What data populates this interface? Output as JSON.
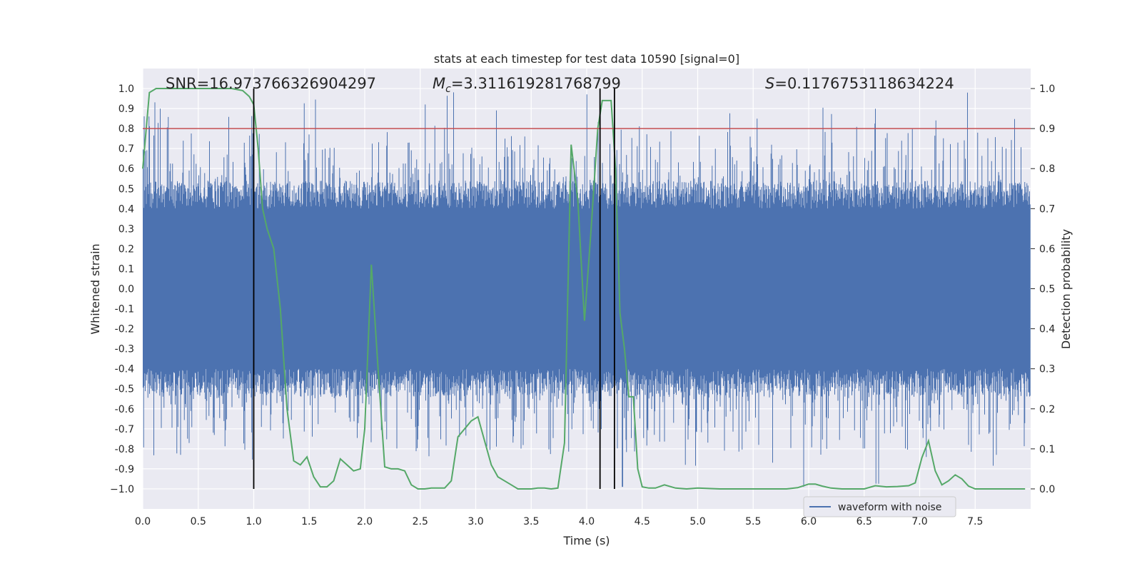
{
  "chart_data": {
    "type": "line",
    "title": "stats at each timestep for test data 10590 [signal=0]",
    "xlabel": "Time (s)",
    "ylabel_left": "Whitened strain",
    "ylabel_right": "Detection probability",
    "xlim": [
      0.0,
      8.0
    ],
    "ylim_left": [
      -1.1,
      1.1
    ],
    "ylim_right": [
      -0.05,
      1.05
    ],
    "x_ticks": [
      "0.0",
      "0.5",
      "1.0",
      "1.5",
      "2.0",
      "2.5",
      "3.0",
      "3.5",
      "4.0",
      "4.5",
      "5.0",
      "5.5",
      "6.0",
      "6.5",
      "7.0",
      "7.5"
    ],
    "y_ticks_left": [
      "1.0",
      "0.9",
      "0.8",
      "0.7",
      "0.6",
      "0.5",
      "0.4",
      "0.3",
      "0.2",
      "0.1",
      "0.0",
      "-0.1",
      "-0.2",
      "-0.3",
      "-0.4",
      "-0.5",
      "-0.6",
      "-0.7",
      "-0.8",
      "-0.9",
      "−1.0"
    ],
    "y_ticks_right": [
      "1.0",
      "0.9",
      "0.8",
      "0.7",
      "0.6",
      "0.5",
      "0.4",
      "0.3",
      "0.2",
      "0.1",
      "0.0"
    ],
    "annotations": {
      "snr": "SNR=16.973766326904297",
      "mc_symbol": "M",
      "mc_sub": "c",
      "mc_value": "=3.311619281768799",
      "s_symbol": "S",
      "s_value": "=0.1176753118634224"
    },
    "threshold": {
      "name": "detection threshold",
      "value_right": 0.9,
      "color": "#c44e52"
    },
    "vertical_markers": [
      {
        "x": 1.0,
        "color": "#000000"
      },
      {
        "x": 4.12,
        "color": "#000000"
      },
      {
        "x": 4.25,
        "color": "#000000"
      }
    ],
    "series": [
      {
        "name": "waveform with noise",
        "axis": "left",
        "color": "#4c72b0",
        "style": "dense noise band",
        "envelope_typical": [
          -0.4,
          0.4
        ],
        "peak_extent": [
          -0.99,
          1.0
        ]
      },
      {
        "name": "detection probability",
        "axis": "right",
        "color": "#55a868",
        "x": [
          0.0,
          0.06,
          0.12,
          0.2,
          0.3,
          0.4,
          0.5,
          0.6,
          0.7,
          0.8,
          0.9,
          0.96,
          1.0,
          1.04,
          1.08,
          1.12,
          1.18,
          1.24,
          1.3,
          1.36,
          1.42,
          1.48,
          1.54,
          1.6,
          1.66,
          1.72,
          1.78,
          1.84,
          1.9,
          1.96,
          2.0,
          2.06,
          2.12,
          2.18,
          2.24,
          2.3,
          2.36,
          2.42,
          2.48,
          2.54,
          2.6,
          2.66,
          2.72,
          2.78,
          2.84,
          2.9,
          2.96,
          3.02,
          3.08,
          3.14,
          3.2,
          3.26,
          3.32,
          3.38,
          3.44,
          3.5,
          3.56,
          3.62,
          3.68,
          3.74,
          3.8,
          3.86,
          3.92,
          3.98,
          4.04,
          4.1,
          4.14,
          4.18,
          4.22,
          4.26,
          4.3,
          4.34,
          4.38,
          4.42,
          4.46,
          4.5,
          4.56,
          4.62,
          4.7,
          4.8,
          4.9,
          5.0,
          5.2,
          5.5,
          5.8,
          5.9,
          6.0,
          6.06,
          6.12,
          6.2,
          6.3,
          6.4,
          6.5,
          6.6,
          6.7,
          6.8,
          6.9,
          6.96,
          7.02,
          7.08,
          7.14,
          7.2,
          7.26,
          7.32,
          7.38,
          7.44,
          7.5,
          7.6,
          7.8,
          7.95
        ],
        "values": [
          0.8,
          0.99,
          1.0,
          1.0,
          1.0,
          1.0,
          1.0,
          1.0,
          1.0,
          1.0,
          0.995,
          0.98,
          0.96,
          0.85,
          0.7,
          0.65,
          0.6,
          0.45,
          0.2,
          0.07,
          0.06,
          0.08,
          0.03,
          0.005,
          0.005,
          0.02,
          0.075,
          0.06,
          0.045,
          0.05,
          0.15,
          0.56,
          0.3,
          0.055,
          0.05,
          0.05,
          0.045,
          0.01,
          0.0,
          0.0,
          0.002,
          0.002,
          0.002,
          0.02,
          0.13,
          0.15,
          0.17,
          0.18,
          0.12,
          0.06,
          0.03,
          0.02,
          0.01,
          0.0,
          0.0,
          0.0,
          0.002,
          0.002,
          0.0,
          0.002,
          0.115,
          0.86,
          0.72,
          0.42,
          0.65,
          0.9,
          0.97,
          0.97,
          0.97,
          0.8,
          0.44,
          0.35,
          0.23,
          0.23,
          0.05,
          0.005,
          0.002,
          0.002,
          0.01,
          0.002,
          0.0,
          0.002,
          0.0,
          0.0,
          0.0,
          0.003,
          0.012,
          0.012,
          0.007,
          0.002,
          0.0,
          0.0,
          0.0,
          0.008,
          0.005,
          0.006,
          0.008,
          0.015,
          0.078,
          0.12,
          0.045,
          0.01,
          0.02,
          0.035,
          0.025,
          0.007,
          0.0,
          0.0,
          0.0,
          0.0
        ]
      }
    ],
    "legend": {
      "location": "lower-right",
      "entries": [
        "waveform with noise"
      ]
    }
  }
}
